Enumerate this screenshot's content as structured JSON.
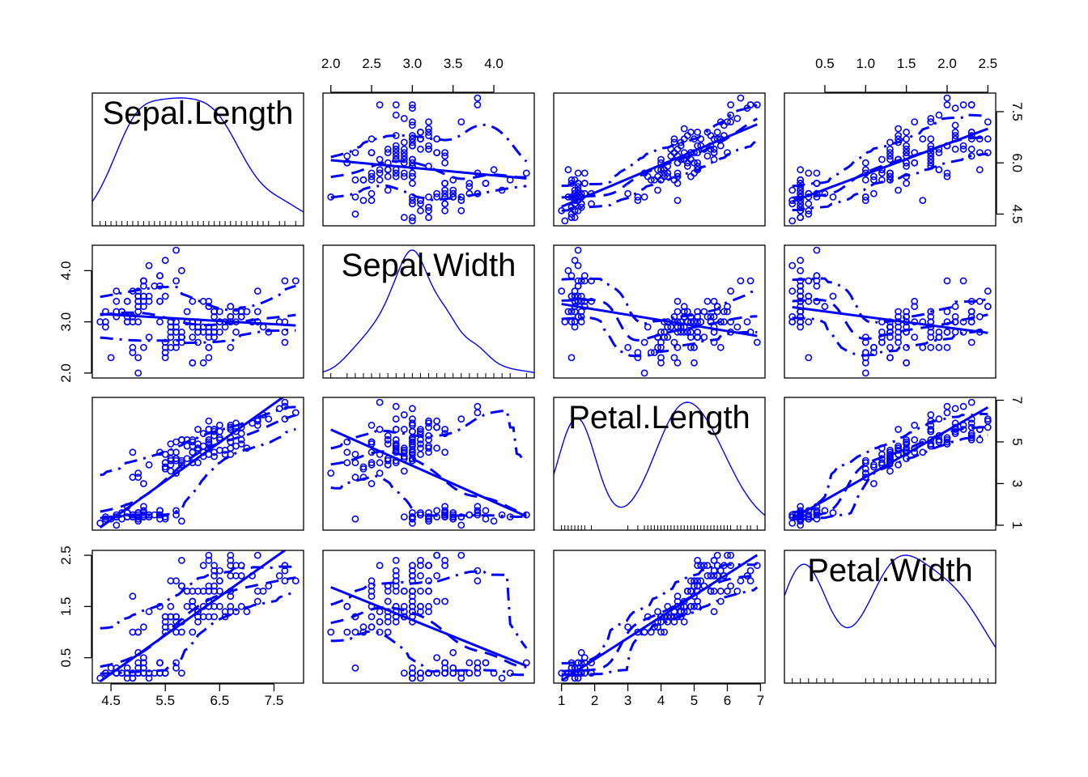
{
  "chart_data": {
    "type": "scatter",
    "subtype": "scatterplot-matrix",
    "title": "",
    "color": "#0000ff",
    "variables": [
      {
        "name": "Sepal.Length",
        "range": [
          4.3,
          7.9
        ],
        "ticks": [
          "4.5",
          "5.5",
          "6.5",
          "7.5"
        ]
      },
      {
        "name": "Sepal.Width",
        "range": [
          2.0,
          4.4
        ],
        "ticks": [
          "2.0",
          "2.5",
          "3.0",
          "3.5",
          "4.0"
        ]
      },
      {
        "name": "Petal.Length",
        "range": [
          1.0,
          6.9
        ],
        "ticks": [
          "1",
          "2",
          "3",
          "4",
          "5",
          "6",
          "7"
        ]
      },
      {
        "name": "Petal.Width",
        "range": [
          0.1,
          2.5
        ],
        "ticks": [
          "0.5",
          "1.0",
          "1.5",
          "2.0",
          "2.5"
        ]
      }
    ],
    "diagonal": "kernel density with rug",
    "off_diagonal": "scatter with least-squares line and smoother bands",
    "axis_tick_labels": {
      "top": [
        {
          "column": 1,
          "labels": [
            "2.0",
            "2.5",
            "3.0",
            "3.5",
            "4.0"
          ]
        },
        {
          "column": 3,
          "labels": [
            "0.5",
            "1.0",
            "1.5",
            "2.0",
            "2.5"
          ]
        }
      ],
      "bottom": [
        {
          "column": 0,
          "labels": [
            "4.5",
            "5.5",
            "6.5",
            "7.5"
          ]
        },
        {
          "column": 2,
          "labels": [
            "1",
            "2",
            "3",
            "4",
            "5",
            "6",
            "7"
          ]
        }
      ],
      "left": [
        {
          "row": 1,
          "labels": [
            "2.0",
            "3.0",
            "4.0"
          ]
        },
        {
          "row": 3,
          "labels": [
            "0.5",
            "1.5",
            "2.5"
          ]
        }
      ],
      "right": [
        {
          "row": 0,
          "labels": [
            "4.5",
            "6.0",
            "7.5"
          ]
        },
        {
          "row": 2,
          "labels": [
            "1",
            "3",
            "5",
            "7"
          ]
        }
      ]
    },
    "points": {
      "Sepal.Length": [
        5.1,
        4.9,
        4.7,
        4.6,
        5.0,
        5.4,
        4.6,
        5.0,
        4.4,
        4.9,
        5.4,
        4.8,
        4.8,
        4.3,
        5.8,
        5.7,
        5.4,
        5.1,
        5.7,
        5.1,
        5.4,
        5.1,
        4.6,
        5.1,
        4.8,
        5.0,
        5.0,
        5.2,
        5.2,
        4.7,
        4.8,
        5.4,
        5.2,
        5.5,
        4.9,
        5.0,
        5.5,
        4.9,
        4.4,
        5.1,
        5.0,
        4.5,
        4.4,
        5.0,
        5.1,
        4.8,
        5.1,
        4.6,
        5.3,
        5.0,
        7.0,
        6.4,
        6.9,
        5.5,
        6.5,
        5.7,
        6.3,
        4.9,
        6.6,
        5.2,
        5.0,
        5.9,
        6.0,
        6.1,
        5.6,
        6.7,
        5.6,
        5.8,
        6.2,
        5.6,
        5.9,
        6.1,
        6.3,
        6.1,
        6.4,
        6.6,
        6.8,
        6.7,
        6.0,
        5.7,
        5.5,
        5.5,
        5.8,
        6.0,
        5.4,
        6.0,
        6.7,
        6.3,
        5.6,
        5.5,
        5.5,
        6.1,
        5.8,
        5.0,
        5.6,
        5.7,
        5.7,
        6.2,
        5.1,
        5.7,
        6.3,
        5.8,
        7.1,
        6.3,
        6.5,
        7.6,
        4.9,
        7.3,
        6.7,
        7.2,
        6.5,
        6.4,
        6.8,
        5.7,
        5.8,
        6.4,
        6.5,
        7.7,
        7.7,
        6.0,
        6.9,
        5.6,
        7.7,
        6.3,
        6.7,
        7.2,
        6.2,
        6.1,
        6.4,
        7.2,
        7.4,
        7.9,
        6.4,
        6.3,
        6.1,
        7.7,
        6.3,
        6.4,
        6.0,
        6.9,
        6.7,
        6.9,
        5.8,
        6.8,
        6.7,
        6.7,
        6.3,
        6.5,
        6.2,
        5.9
      ],
      "Sepal.Width": [
        3.5,
        3.0,
        3.2,
        3.1,
        3.6,
        3.9,
        3.4,
        3.4,
        2.9,
        3.1,
        3.7,
        3.4,
        3.0,
        3.0,
        4.0,
        4.4,
        3.9,
        3.5,
        3.8,
        3.8,
        3.4,
        3.7,
        3.6,
        3.3,
        3.4,
        3.0,
        3.4,
        3.5,
        3.4,
        3.2,
        3.1,
        3.4,
        4.1,
        4.2,
        3.1,
        3.2,
        3.5,
        3.6,
        3.0,
        3.4,
        3.5,
        2.3,
        3.2,
        3.5,
        3.8,
        3.0,
        3.8,
        3.2,
        3.7,
        3.3,
        3.2,
        3.2,
        3.1,
        2.3,
        2.8,
        2.8,
        3.3,
        2.4,
        2.9,
        2.7,
        2.0,
        3.0,
        2.2,
        2.9,
        2.9,
        3.1,
        3.0,
        2.7,
        2.2,
        2.5,
        3.2,
        2.8,
        2.5,
        2.8,
        2.9,
        3.0,
        2.8,
        3.0,
        2.9,
        2.6,
        2.4,
        2.4,
        2.7,
        2.7,
        3.0,
        3.4,
        3.1,
        2.3,
        3.0,
        2.5,
        2.6,
        3.0,
        2.6,
        2.3,
        2.7,
        3.0,
        2.9,
        2.9,
        2.5,
        2.8,
        3.3,
        2.7,
        3.0,
        2.9,
        3.0,
        3.0,
        2.5,
        2.9,
        2.5,
        3.6,
        3.2,
        2.7,
        3.0,
        2.5,
        2.8,
        3.2,
        3.0,
        3.8,
        2.6,
        2.2,
        3.2,
        2.8,
        2.8,
        2.7,
        3.3,
        3.2,
        2.8,
        3.0,
        2.8,
        3.0,
        2.8,
        3.8,
        2.8,
        2.8,
        2.6,
        3.0,
        3.4,
        3.1,
        3.0,
        3.1,
        3.1,
        3.1,
        2.7,
        3.2,
        3.3,
        3.0,
        2.5,
        3.0,
        3.4,
        3.0
      ],
      "Petal.Length": [
        1.4,
        1.4,
        1.3,
        1.5,
        1.4,
        1.7,
        1.4,
        1.5,
        1.4,
        1.5,
        1.5,
        1.6,
        1.4,
        1.1,
        1.2,
        1.5,
        1.3,
        1.4,
        1.7,
        1.5,
        1.7,
        1.5,
        1.0,
        1.7,
        1.9,
        1.6,
        1.6,
        1.5,
        1.4,
        1.6,
        1.6,
        1.5,
        1.5,
        1.4,
        1.5,
        1.2,
        1.3,
        1.4,
        1.3,
        1.5,
        1.3,
        1.3,
        1.3,
        1.6,
        1.9,
        1.4,
        1.6,
        1.4,
        1.5,
        1.4,
        4.7,
        4.5,
        4.9,
        4.0,
        4.6,
        4.5,
        4.7,
        3.3,
        4.6,
        3.9,
        3.5,
        4.2,
        4.0,
        4.7,
        3.6,
        4.4,
        4.5,
        4.1,
        4.5,
        3.9,
        4.8,
        4.0,
        4.9,
        4.7,
        4.3,
        4.4,
        4.8,
        5.0,
        4.5,
        3.5,
        3.8,
        3.7,
        3.9,
        5.1,
        4.5,
        4.5,
        4.7,
        4.4,
        4.1,
        4.0,
        4.4,
        4.6,
        4.0,
        3.3,
        4.2,
        4.2,
        4.2,
        4.3,
        3.0,
        4.1,
        6.0,
        5.1,
        5.9,
        5.6,
        5.8,
        6.6,
        4.5,
        6.3,
        5.8,
        6.1,
        5.1,
        5.3,
        5.5,
        5.0,
        5.1,
        5.3,
        5.5,
        6.7,
        6.9,
        5.0,
        5.7,
        4.9,
        6.7,
        4.9,
        5.7,
        6.0,
        4.8,
        4.9,
        5.6,
        5.8,
        6.1,
        6.4,
        5.6,
        5.1,
        5.6,
        6.1,
        5.6,
        5.5,
        4.8,
        5.4,
        5.6,
        5.1,
        5.1,
        5.9,
        5.7,
        5.2,
        5.0,
        5.2,
        5.4,
        5.1
      ],
      "Petal.Width": [
        0.2,
        0.2,
        0.2,
        0.2,
        0.2,
        0.4,
        0.3,
        0.2,
        0.2,
        0.1,
        0.2,
        0.2,
        0.1,
        0.1,
        0.2,
        0.4,
        0.4,
        0.3,
        0.3,
        0.3,
        0.2,
        0.4,
        0.2,
        0.5,
        0.2,
        0.2,
        0.4,
        0.2,
        0.2,
        0.2,
        0.2,
        0.4,
        0.1,
        0.2,
        0.2,
        0.2,
        0.2,
        0.1,
        0.2,
        0.2,
        0.3,
        0.3,
        0.2,
        0.6,
        0.4,
        0.3,
        0.2,
        0.2,
        0.2,
        0.2,
        1.4,
        1.5,
        1.5,
        1.3,
        1.5,
        1.3,
        1.6,
        1.0,
        1.3,
        1.4,
        1.0,
        1.5,
        1.0,
        1.4,
        1.3,
        1.4,
        1.5,
        1.0,
        1.5,
        1.1,
        1.8,
        1.3,
        1.5,
        1.2,
        1.3,
        1.4,
        1.4,
        1.7,
        1.5,
        1.0,
        1.1,
        1.0,
        1.2,
        1.6,
        1.5,
        1.6,
        1.5,
        1.3,
        1.3,
        1.3,
        1.2,
        1.4,
        1.2,
        1.0,
        1.3,
        1.2,
        1.3,
        1.3,
        1.1,
        1.3,
        2.5,
        1.9,
        2.1,
        1.8,
        2.2,
        2.1,
        1.7,
        1.8,
        1.8,
        2.5,
        2.0,
        1.9,
        2.1,
        2.0,
        2.4,
        2.3,
        1.8,
        2.2,
        2.3,
        1.5,
        2.3,
        2.0,
        2.0,
        1.8,
        2.1,
        1.8,
        1.8,
        1.8,
        2.1,
        1.6,
        1.9,
        2.0,
        2.2,
        1.5,
        1.4,
        2.3,
        2.4,
        1.8,
        1.8,
        2.1,
        2.4,
        2.3,
        1.9,
        2.3,
        2.5,
        2.3,
        1.9,
        2.0,
        2.3,
        1.8
      ]
    }
  }
}
